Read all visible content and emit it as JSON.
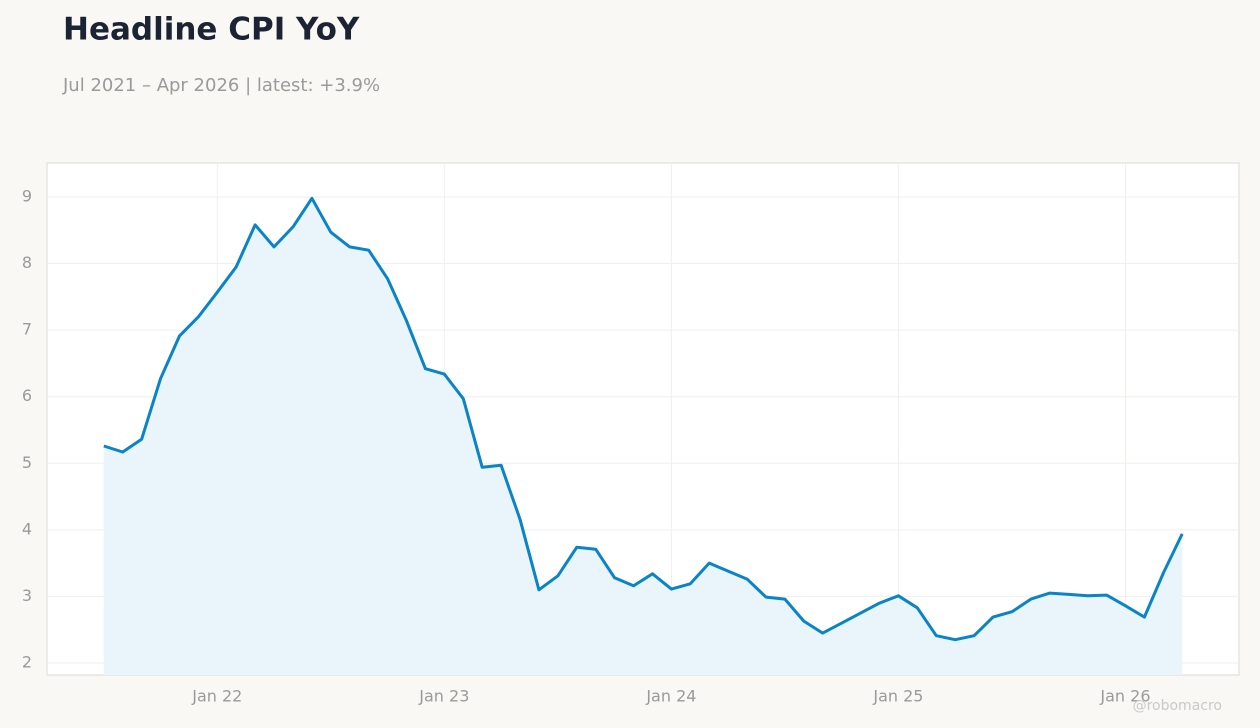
{
  "chart_data": {
    "type": "area",
    "title": "Headline CPI YoY",
    "subtitle": "Jul 2021 – Apr 2026 | latest: +3.9%",
    "watermark": "@robomacro",
    "color": "#0a84c6",
    "fill": "#e9f4fb",
    "grid": true,
    "x": [
      "2021-07",
      "2021-08",
      "2021-09",
      "2021-10",
      "2021-11",
      "2021-12",
      "2022-01",
      "2022-02",
      "2022-03",
      "2022-04",
      "2022-05",
      "2022-06",
      "2022-07",
      "2022-08",
      "2022-09",
      "2022-10",
      "2022-11",
      "2022-12",
      "2023-01",
      "2023-02",
      "2023-03",
      "2023-04",
      "2023-05",
      "2023-06",
      "2023-07",
      "2023-08",
      "2023-09",
      "2023-10",
      "2023-11",
      "2023-12",
      "2024-01",
      "2024-02",
      "2024-03",
      "2024-04",
      "2024-05",
      "2024-06",
      "2024-07",
      "2024-08",
      "2024-09",
      "2024-10",
      "2024-11",
      "2024-12",
      "2025-01",
      "2025-02",
      "2025-03",
      "2025-04",
      "2025-05",
      "2025-06",
      "2025-07",
      "2025-08",
      "2025-09",
      "2025-10",
      "2025-11",
      "2025-12",
      "2026-01",
      "2026-02",
      "2026-03",
      "2026-04"
    ],
    "values": [
      5.26,
      5.17,
      5.36,
      6.27,
      6.91,
      7.2,
      7.57,
      7.95,
      8.58,
      8.25,
      8.55,
      8.98,
      8.47,
      8.25,
      8.2,
      7.77,
      7.14,
      6.42,
      6.34,
      5.97,
      4.94,
      4.97,
      4.16,
      3.1,
      3.31,
      3.74,
      3.71,
      3.28,
      3.16,
      3.34,
      3.11,
      3.19,
      3.5,
      3.38,
      3.26,
      2.99,
      2.96,
      2.63,
      2.45,
      2.6,
      2.75,
      2.9,
      3.01,
      2.83,
      2.41,
      2.35,
      2.41,
      2.69,
      2.77,
      2.96,
      3.05,
      3.03,
      3.01,
      3.02,
      2.86,
      2.69,
      3.35,
      3.94
    ],
    "xlim": [
      "2021-04",
      "2026-07"
    ],
    "xticks": [
      {
        "value": "2022-01",
        "label": "Jan 22"
      },
      {
        "value": "2023-01",
        "label": "Jan 23"
      },
      {
        "value": "2024-01",
        "label": "Jan 24"
      },
      {
        "value": "2025-01",
        "label": "Jan 25"
      },
      {
        "value": "2026-01",
        "label": "Jan 26"
      }
    ],
    "ylim": [
      1.82,
      9.51
    ],
    "yticks": [
      2,
      3,
      4,
      5,
      6,
      7,
      8,
      9
    ]
  }
}
